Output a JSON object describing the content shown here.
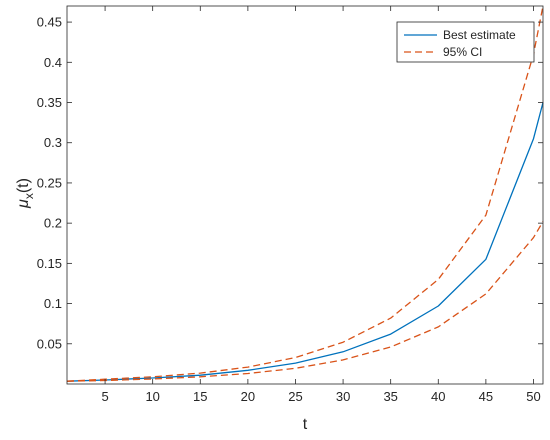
{
  "chart_data": {
    "type": "line",
    "title": "",
    "xlabel": "t",
    "ylabel": "μx(t)",
    "ylabel_main": "μ",
    "ylabel_sub": "x",
    "ylabel_tail": "(t)",
    "xlim": [
      1,
      51
    ],
    "ylim": [
      0,
      0.47
    ],
    "xticks": [
      5,
      10,
      15,
      20,
      25,
      30,
      35,
      40,
      45,
      50
    ],
    "yticks": [
      0.05,
      0.1,
      0.15,
      0.2,
      0.25,
      0.3,
      0.35,
      0.4,
      0.45
    ],
    "grid": false,
    "legend_position": "top-right",
    "x": [
      1,
      5,
      10,
      15,
      20,
      25,
      30,
      35,
      40,
      45,
      50,
      51
    ],
    "series": [
      {
        "name": "Best estimate",
        "color": "#0072bd",
        "style": "solid",
        "values": [
          0.0035,
          0.005,
          0.0075,
          0.011,
          0.017,
          0.026,
          0.04,
          0.062,
          0.097,
          0.155,
          0.305,
          0.35
        ]
      },
      {
        "name": "95% CI",
        "color": "#d95319",
        "style": "dashed",
        "values": [
          0.0035,
          0.006,
          0.009,
          0.0135,
          0.021,
          0.033,
          0.052,
          0.082,
          0.13,
          0.21,
          0.41,
          0.47
        ]
      },
      {
        "name": "",
        "color": "#d95319",
        "style": "dashed",
        "values": [
          0.0035,
          0.0043,
          0.0062,
          0.0089,
          0.013,
          0.0195,
          0.03,
          0.046,
          0.071,
          0.112,
          0.182,
          0.202
        ]
      }
    ]
  }
}
